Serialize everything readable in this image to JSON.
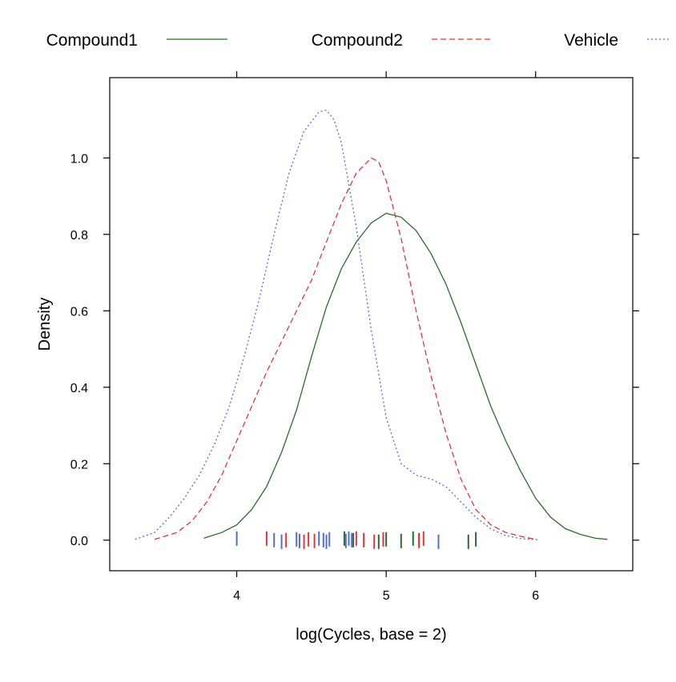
{
  "chart_data": {
    "type": "line",
    "title": "",
    "xlabel": "log(Cycles, base = 2)",
    "ylabel": "Density",
    "xlim": [
      3.15,
      6.65
    ],
    "ylim": [
      -0.08,
      1.21
    ],
    "x_ticks": [
      4,
      5,
      6
    ],
    "y_ticks": [
      0.0,
      0.2,
      0.4,
      0.6,
      0.8,
      1.0
    ],
    "x_tick_labels": [
      "4",
      "5",
      "6"
    ],
    "y_tick_labels": [
      "0.0",
      "0.2",
      "0.4",
      "0.6",
      "0.8",
      "1.0"
    ],
    "grid": false,
    "legend_position": "top",
    "series": [
      {
        "name": "Compound1",
        "color": "#2d6a2d",
        "dash": "solid",
        "x": [
          3.78,
          3.9,
          4.0,
          4.1,
          4.2,
          4.3,
          4.4,
          4.5,
          4.6,
          4.7,
          4.8,
          4.9,
          5.0,
          5.1,
          5.2,
          5.3,
          5.4,
          5.5,
          5.6,
          5.7,
          5.8,
          5.9,
          6.0,
          6.1,
          6.2,
          6.3,
          6.4,
          6.48
        ],
        "y": [
          0.005,
          0.02,
          0.04,
          0.08,
          0.14,
          0.23,
          0.34,
          0.48,
          0.61,
          0.71,
          0.78,
          0.83,
          0.855,
          0.845,
          0.81,
          0.75,
          0.67,
          0.57,
          0.46,
          0.35,
          0.26,
          0.18,
          0.11,
          0.06,
          0.03,
          0.015,
          0.005,
          0.002
        ],
        "rug": [
          4.72,
          4.78,
          4.95,
          5.0,
          5.1,
          5.18,
          5.22,
          5.55,
          5.6
        ]
      },
      {
        "name": "Compound2",
        "color": "#e8333a",
        "dash": "dashed",
        "x": [
          3.45,
          3.6,
          3.7,
          3.8,
          3.9,
          4.0,
          4.1,
          4.2,
          4.3,
          4.4,
          4.5,
          4.6,
          4.7,
          4.8,
          4.9,
          4.95,
          5.0,
          5.1,
          5.2,
          5.3,
          5.4,
          5.5,
          5.6,
          5.7,
          5.8,
          5.9,
          6.0
        ],
        "y": [
          0.002,
          0.02,
          0.05,
          0.1,
          0.17,
          0.26,
          0.35,
          0.44,
          0.52,
          0.6,
          0.68,
          0.78,
          0.88,
          0.96,
          1.0,
          0.99,
          0.94,
          0.79,
          0.6,
          0.43,
          0.28,
          0.16,
          0.08,
          0.04,
          0.02,
          0.01,
          0.002
        ],
        "rug": [
          4.2,
          4.33,
          4.45,
          4.48,
          4.52,
          4.8,
          4.85,
          4.92,
          4.98,
          5.22,
          5.25
        ]
      },
      {
        "name": "Vehicle",
        "color": "#4f6fd4",
        "dash": "dotted",
        "x": [
          3.32,
          3.45,
          3.55,
          3.65,
          3.75,
          3.85,
          3.95,
          4.05,
          4.15,
          4.25,
          4.35,
          4.45,
          4.55,
          4.6,
          4.65,
          4.7,
          4.8,
          4.9,
          5.0,
          5.1,
          5.2,
          5.3,
          5.4,
          5.5,
          5.6,
          5.7,
          5.8,
          5.9,
          6.02
        ],
        "y": [
          0.002,
          0.02,
          0.06,
          0.11,
          0.17,
          0.25,
          0.35,
          0.48,
          0.63,
          0.8,
          0.96,
          1.07,
          1.12,
          1.125,
          1.1,
          1.04,
          0.82,
          0.55,
          0.32,
          0.2,
          0.17,
          0.16,
          0.14,
          0.1,
          0.06,
          0.03,
          0.012,
          0.004,
          0.001
        ],
        "rug": [
          4.0,
          4.25,
          4.3,
          4.4,
          4.42,
          4.55,
          4.58,
          4.6,
          4.62,
          4.73,
          4.75,
          4.77,
          5.35
        ]
      }
    ]
  }
}
